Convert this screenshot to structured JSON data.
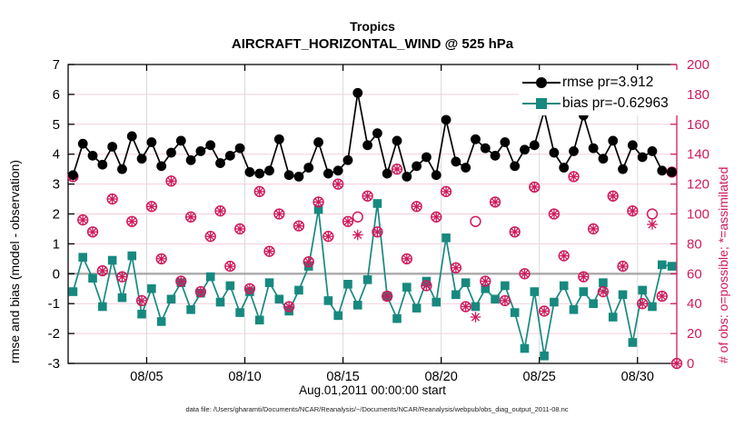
{
  "figure": {
    "title_line1": "Tropics",
    "title_line2": "AIRCRAFT_HORIZONTAL_WIND @ 525 hPa",
    "xlabel": "Aug.01,2011 00:00:00 start",
    "ylabel_left": "rmse and bias (model - observation)",
    "ylabel_right": "# of obs: o=possible; *=assimilated",
    "footer": "data file: /Users/gharamti/Documents/NCAR/Reanalysis/~/Documents/NCAR/Reanalysis/webpub/obs_diag_output_2011-08.nc",
    "legend": [
      {
        "label": "rmse pr=3.912",
        "marker": "circle",
        "color": "#000000"
      },
      {
        "label": "bias pr=-0.62963",
        "marker": "square",
        "color": "#17897f"
      }
    ]
  },
  "colors": {
    "rmse": "#000000",
    "bias": "#17897f",
    "obs": "#d01a5d",
    "grid_horizontal": "#f4cfdc",
    "grid_vertical": "#dbdbdb",
    "zero_line": "#a9a9a9",
    "frame": "#000000",
    "right_spine": "#d01a5d"
  },
  "chart_data": {
    "type": "line",
    "title": "Tropics — AIRCRAFT_HORIZONTAL_WIND @ 525 hPa",
    "x_unit": "days since Aug 01, 2011 00:00 UTC (2 obs windows per day)",
    "x_range_days": [
      0,
      31
    ],
    "x_ticks": [
      {
        "day": 4,
        "label": "08/05"
      },
      {
        "day": 9,
        "label": "08/10"
      },
      {
        "day": 14,
        "label": "08/15"
      },
      {
        "day": 19,
        "label": "08/20"
      },
      {
        "day": 24,
        "label": "08/25"
      },
      {
        "day": 29,
        "label": "08/30"
      }
    ],
    "left_axis": {
      "label": "rmse and bias (model - observation)",
      "min": -3,
      "max": 7,
      "ticks": [
        -3,
        -2,
        -1,
        0,
        1,
        2,
        3,
        4,
        5,
        6,
        7
      ]
    },
    "right_axis": {
      "label": "# of obs: o=possible; *=assimilated",
      "min": 0,
      "max": 200,
      "ticks": [
        0,
        20,
        40,
        60,
        80,
        100,
        120,
        140,
        160,
        180,
        200
      ]
    },
    "grid": true,
    "legend_position": "top-right-inside",
    "x_days": [
      0.25,
      0.75,
      1.25,
      1.75,
      2.25,
      2.75,
      3.25,
      3.75,
      4.25,
      4.75,
      5.25,
      5.75,
      6.25,
      6.75,
      7.25,
      7.75,
      8.25,
      8.75,
      9.25,
      9.75,
      10.25,
      10.75,
      11.25,
      11.75,
      12.25,
      12.75,
      13.25,
      13.75,
      14.25,
      14.75,
      15.25,
      15.75,
      16.25,
      16.75,
      17.25,
      17.75,
      18.25,
      18.75,
      19.25,
      19.75,
      20.25,
      20.75,
      21.25,
      21.75,
      22.25,
      22.75,
      23.25,
      23.75,
      24.25,
      24.75,
      25.25,
      25.75,
      26.25,
      26.75,
      27.25,
      27.75,
      28.25,
      28.75,
      29.25,
      29.75,
      30.25,
      30.75
    ],
    "series": [
      {
        "name": "rmse",
        "axis": "left",
        "time_mean": 3.912,
        "values": [
          3.3,
          4.35,
          3.95,
          3.65,
          4.25,
          3.5,
          4.6,
          3.85,
          4.4,
          3.6,
          4.05,
          4.45,
          3.8,
          4.1,
          4.3,
          3.7,
          3.95,
          4.2,
          3.4,
          3.35,
          3.45,
          4.5,
          3.3,
          3.25,
          3.55,
          4.4,
          3.35,
          3.45,
          3.8,
          6.05,
          4.3,
          4.7,
          3.35,
          4.45,
          3.25,
          3.6,
          3.9,
          3.3,
          5.15,
          3.75,
          3.55,
          4.5,
          4.2,
          3.95,
          4.4,
          3.6,
          4.15,
          4.3,
          5.45,
          4.05,
          3.55,
          4.1,
          5.3,
          4.2,
          3.85,
          4.45,
          3.5,
          4.3,
          3.9,
          4.1,
          3.45,
          3.4
        ]
      },
      {
        "name": "bias",
        "axis": "left",
        "time_mean": -0.62963,
        "values": [
          -0.6,
          0.55,
          -0.15,
          -1.1,
          0.45,
          -0.8,
          0.6,
          -1.35,
          -0.5,
          -1.6,
          -0.85,
          -0.3,
          -1.2,
          -0.65,
          -0.1,
          -0.95,
          -0.4,
          -1.3,
          -0.6,
          -1.55,
          -0.3,
          -0.85,
          -1.25,
          -0.55,
          0.25,
          2.15,
          -0.9,
          -1.4,
          -0.35,
          -1.05,
          -0.2,
          2.35,
          -0.75,
          -1.5,
          -0.45,
          -1.15,
          -0.25,
          -0.95,
          1.2,
          -0.7,
          -0.3,
          -1.1,
          -0.5,
          -0.85,
          -0.4,
          -1.3,
          -2.5,
          -0.6,
          -2.75,
          -0.95,
          -0.4,
          -1.2,
          -0.6,
          -1.0,
          -0.3,
          -1.45,
          -0.7,
          -2.3,
          -0.55,
          -1.1,
          0.3,
          0.25
        ]
      },
      {
        "name": "obs_possible",
        "axis": "right",
        "marker": "o",
        "x_days": [
          0.25,
          0.75,
          1.25,
          1.75,
          2.25,
          2.75,
          3.25,
          3.75,
          4.25,
          4.75,
          5.25,
          5.75,
          6.25,
          6.75,
          7.25,
          7.75,
          8.25,
          8.75,
          9.25,
          9.75,
          10.25,
          10.75,
          11.25,
          11.75,
          12.25,
          12.75,
          13.25,
          13.75,
          14.25,
          14.75,
          15.25,
          15.75,
          16.25,
          16.75,
          17.25,
          17.75,
          18.25,
          18.75,
          19.25,
          19.75,
          20.25,
          20.75,
          21.25,
          21.75,
          22.25,
          22.75,
          23.25,
          23.75,
          24.25,
          24.75,
          25.25,
          25.75,
          26.25,
          26.75,
          27.25,
          27.75,
          28.25,
          28.75,
          29.25,
          29.75,
          30.25,
          30.75,
          31.0
        ],
        "values": [
          125,
          96,
          88,
          62,
          110,
          58,
          95,
          42,
          105,
          70,
          122,
          55,
          98,
          48,
          85,
          102,
          65,
          90,
          50,
          115,
          75,
          100,
          38,
          92,
          68,
          108,
          85,
          120,
          95,
          98,
          112,
          88,
          45,
          130,
          70,
          105,
          52,
          98,
          115,
          64,
          38,
          95,
          55,
          108,
          42,
          88,
          60,
          118,
          35,
          100,
          72,
          125,
          58,
          90,
          48,
          112,
          65,
          102,
          40,
          100,
          45,
          128,
          0
        ]
      },
      {
        "name": "obs_assimilated",
        "axis": "right",
        "marker": "*",
        "x_days": [
          0.25,
          0.75,
          1.25,
          1.75,
          2.25,
          2.75,
          3.25,
          3.75,
          4.25,
          4.75,
          5.25,
          5.75,
          6.25,
          6.75,
          7.25,
          7.75,
          8.25,
          8.75,
          9.25,
          9.75,
          10.25,
          10.75,
          11.25,
          11.75,
          12.25,
          12.75,
          13.25,
          13.75,
          14.25,
          14.75,
          15.25,
          15.75,
          16.25,
          16.75,
          17.25,
          17.75,
          18.25,
          18.75,
          19.25,
          19.75,
          20.25,
          20.75,
          21.25,
          21.75,
          22.25,
          22.75,
          23.25,
          23.75,
          24.25,
          24.75,
          25.25,
          25.75,
          26.25,
          26.75,
          27.25,
          27.75,
          28.25,
          28.75,
          29.25,
          29.75,
          30.25,
          30.75,
          31.0
        ],
        "values": [
          125,
          96,
          88,
          62,
          110,
          58,
          95,
          42,
          105,
          70,
          122,
          55,
          98,
          48,
          85,
          102,
          65,
          90,
          50,
          115,
          75,
          100,
          38,
          92,
          68,
          108,
          85,
          120,
          95,
          86,
          112,
          88,
          45,
          130,
          70,
          105,
          52,
          98,
          115,
          64,
          38,
          31,
          55,
          108,
          42,
          88,
          60,
          118,
          35,
          100,
          72,
          125,
          58,
          90,
          48,
          112,
          65,
          102,
          40,
          93,
          45,
          128,
          0
        ]
      }
    ]
  }
}
